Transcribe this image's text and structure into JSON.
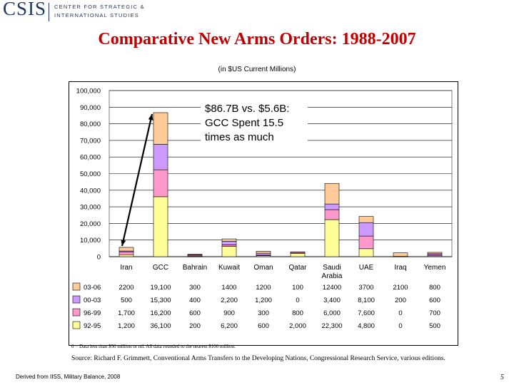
{
  "header": {
    "logo_mark": "CSIS",
    "logo_line1": "CENTER FOR STRATEGIC &",
    "logo_line2": "INTERNATIONAL STUDIES"
  },
  "title": "Comparative New Arms Orders: 1988-2007",
  "subtitle": "(in $US Current Millions)",
  "callout": [
    "$86.7B vs. $5.6B:",
    "GCC Spent 15.5",
    "times as much"
  ],
  "footnote": "0 = Data less than $50 million or nil. All data rounded to the nearest $100 million.",
  "source": "Source: Richard F. Grimmett, Conventional Arms Transfers to the Developing Nations, Congressional Research Service, various editions.",
  "derived": "Derived from IISS, Military Balance, 2008",
  "page_number": "5",
  "chart_data": {
    "type": "bar",
    "stacked": true,
    "ylim": [
      0,
      100000
    ],
    "yticks": [
      0,
      10000,
      20000,
      30000,
      40000,
      50000,
      60000,
      70000,
      80000,
      90000,
      100000
    ],
    "ytick_labels": [
      "0",
      "10,000",
      "20,000",
      "30,000",
      "40,000",
      "50,000",
      "60,000",
      "70,000",
      "80,000",
      "90,000",
      "100,000"
    ],
    "grid": true,
    "categories": [
      [
        "Iran"
      ],
      [
        "GCC"
      ],
      [
        "Bahrain"
      ],
      [
        "Kuwait"
      ],
      [
        "Oman"
      ],
      [
        "Qatar"
      ],
      [
        "Saudi",
        "Arabia"
      ],
      [
        "UAE"
      ],
      [
        "Iraq"
      ],
      [
        "Yemen"
      ]
    ],
    "series": [
      {
        "name": "92-95",
        "color": "#ffff99",
        "values": [
          1200,
          36100,
          200,
          6200,
          600,
          2000,
          22300,
          4800,
          0,
          500
        ],
        "labels": [
          "1,200",
          "36,100",
          "200",
          "6,200",
          "600",
          "2,000",
          "22,300",
          "4,800",
          "0",
          "500"
        ]
      },
      {
        "name": "96-99",
        "color": "#ff99cc",
        "values": [
          1700,
          16200,
          600,
          900,
          300,
          800,
          6000,
          7600,
          0,
          700
        ],
        "labels": [
          "1,700",
          "16,200",
          "600",
          "900",
          "300",
          "800",
          "6,000",
          "7,600",
          "0",
          "700"
        ]
      },
      {
        "name": "00-03",
        "color": "#cc99ff",
        "values": [
          500,
          15300,
          400,
          2200,
          1200,
          0,
          3400,
          8100,
          200,
          600
        ],
        "labels": [
          "500",
          "15,300",
          "400",
          "2,200",
          "1,200",
          "0",
          "3,400",
          "8,100",
          "200",
          "600"
        ]
      },
      {
        "name": "03-06",
        "color": "#ffcc99",
        "values": [
          2200,
          19100,
          300,
          1400,
          1200,
          100,
          12400,
          3700,
          2100,
          800
        ],
        "labels": [
          "2200",
          "19,100",
          "300",
          "1400",
          "1200",
          "100",
          "12400",
          "3700",
          "2100",
          "800"
        ]
      }
    ],
    "table_row_order": [
      "03-06",
      "00-03",
      "96-99",
      "92-95"
    ]
  }
}
